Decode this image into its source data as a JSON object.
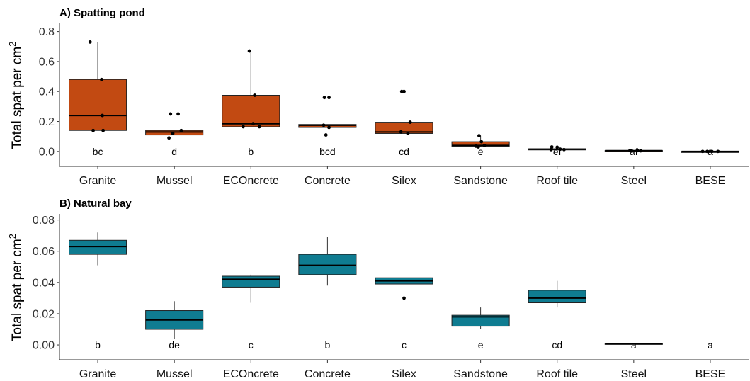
{
  "chart_data": [
    {
      "type": "box",
      "title": "A) Spatting pond",
      "ylabel": "Total spat per cm",
      "ylabel_sup": "2",
      "ylim": [
        -0.1,
        0.85
      ],
      "yticks": [
        0.0,
        0.2,
        0.4,
        0.6,
        0.8
      ],
      "ytick_labels": [
        "0.0",
        "0.2",
        "0.4",
        "0.6",
        "0.8"
      ],
      "fill_color": "#C24A12",
      "categories": [
        "Granite",
        "Mussel",
        "ECOncrete",
        "Concrete",
        "Silex",
        "Sandstone",
        "Roof tile",
        "Steel",
        "BESE"
      ],
      "boxes": [
        {
          "q1": 0.14,
          "median": 0.24,
          "q3": 0.48,
          "whisker_low": 0.14,
          "whisker_high": 0.73
        },
        {
          "q1": 0.11,
          "median": 0.13,
          "q3": 0.14,
          "whisker_low": 0.11,
          "whisker_high": 0.14
        },
        {
          "q1": 0.165,
          "median": 0.185,
          "q3": 0.375,
          "whisker_low": 0.165,
          "whisker_high": 0.67
        },
        {
          "q1": 0.16,
          "median": 0.175,
          "q3": 0.18,
          "whisker_low": 0.16,
          "whisker_high": 0.18
        },
        {
          "q1": 0.12,
          "median": 0.13,
          "q3": 0.195,
          "whisker_low": 0.12,
          "whisker_high": 0.195
        },
        {
          "q1": 0.035,
          "median": 0.04,
          "q3": 0.065,
          "whisker_low": 0.03,
          "whisker_high": 0.105
        },
        {
          "q1": 0.012,
          "median": 0.015,
          "q3": 0.017,
          "whisker_low": 0.01,
          "whisker_high": 0.02
        },
        {
          "q1": 0.004,
          "median": 0.005,
          "q3": 0.006,
          "whisker_low": 0.004,
          "whisker_high": 0.006
        },
        {
          "q1": 0.0,
          "median": 0.0,
          "q3": 0.0,
          "whisker_low": 0.0,
          "whisker_high": 0.0
        }
      ],
      "points": [
        [
          [
            0.73,
            -0.1
          ],
          [
            0.48,
            0.05
          ],
          [
            0.24,
            0.06
          ],
          [
            0.14,
            -0.06
          ],
          [
            0.14,
            0.07
          ]
        ],
        [
          [
            0.25,
            -0.05
          ],
          [
            0.25,
            0.05
          ],
          [
            0.14,
            0.09
          ],
          [
            0.12,
            -0.02
          ],
          [
            0.09,
            -0.07
          ]
        ],
        [
          [
            0.67,
            -0.02
          ],
          [
            0.375,
            0.05
          ],
          [
            0.185,
            0.03
          ],
          [
            0.165,
            -0.1
          ],
          [
            0.165,
            0.11
          ]
        ],
        [
          [
            0.36,
            -0.04
          ],
          [
            0.36,
            0.02
          ],
          [
            0.175,
            -0.05
          ],
          [
            0.16,
            0.02
          ],
          [
            0.11,
            -0.02
          ]
        ],
        [
          [
            0.4,
            -0.03
          ],
          [
            0.4,
            0.0
          ],
          [
            0.195,
            0.08
          ],
          [
            0.13,
            -0.04
          ],
          [
            0.12,
            0.05
          ]
        ],
        [
          [
            0.105,
            -0.02
          ],
          [
            0.065,
            0.01
          ],
          [
            0.04,
            0.05
          ],
          [
            0.035,
            -0.06
          ],
          [
            0.03,
            -0.03
          ]
        ],
        [
          [
            0.03,
            -0.07
          ],
          [
            0.028,
            0.0
          ],
          [
            0.015,
            0.04
          ],
          [
            0.012,
            -0.08
          ],
          [
            0.012,
            0.09
          ]
        ],
        [
          [
            0.006,
            -0.05
          ],
          [
            0.005,
            -0.03
          ],
          [
            0.005,
            0.05
          ],
          [
            0.004,
            0.09
          ]
        ],
        [
          [
            0.0,
            -0.1
          ],
          [
            0.0,
            -0.04
          ],
          [
            0.0,
            0.02
          ],
          [
            0.0,
            0.1
          ]
        ]
      ],
      "letters": [
        "bc",
        "d",
        "b",
        "bcd",
        "cd",
        "e",
        "ef",
        "af",
        "a"
      ],
      "letter_y": 0.0
    },
    {
      "type": "box",
      "title": "B) Natural bay",
      "ylabel": "Total spat per cm",
      "ylabel_sup": "2",
      "ylim": [
        -0.0095,
        0.083
      ],
      "yticks": [
        0.0,
        0.02,
        0.04,
        0.06,
        0.08
      ],
      "ytick_labels": [
        "0.00",
        "0.02",
        "0.04",
        "0.06",
        "0.08"
      ],
      "fill_color": "#0F7C91",
      "categories": [
        "Granite",
        "Mussel",
        "ECOncrete",
        "Concrete",
        "Silex",
        "Sandstone",
        "Roof tile",
        "Steel",
        "BESE"
      ],
      "boxes": [
        {
          "q1": 0.058,
          "median": 0.063,
          "q3": 0.067,
          "whisker_low": 0.051,
          "whisker_high": 0.072
        },
        {
          "q1": 0.01,
          "median": 0.016,
          "q3": 0.022,
          "whisker_low": 0.004,
          "whisker_high": 0.028
        },
        {
          "q1": 0.037,
          "median": 0.042,
          "q3": 0.044,
          "whisker_low": 0.027,
          "whisker_high": 0.045
        },
        {
          "q1": 0.045,
          "median": 0.051,
          "q3": 0.058,
          "whisker_low": 0.038,
          "whisker_high": 0.069
        },
        {
          "q1": 0.039,
          "median": 0.041,
          "q3": 0.043,
          "whisker_low": 0.039,
          "whisker_high": 0.043
        },
        {
          "q1": 0.012,
          "median": 0.018,
          "q3": 0.019,
          "whisker_low": 0.01,
          "whisker_high": 0.024
        },
        {
          "q1": 0.027,
          "median": 0.03,
          "q3": 0.035,
          "whisker_low": 0.024,
          "whisker_high": 0.041
        },
        {
          "q1": 0.0005,
          "median": 0.0007,
          "q3": 0.001,
          "whisker_low": 0.0005,
          "whisker_high": 0.001
        },
        null
      ],
      "points": [
        [],
        [],
        [],
        [],
        [
          [
            0.03,
            0.0
          ]
        ],
        [],
        [],
        [],
        []
      ],
      "letters": [
        "b",
        "de",
        "c",
        "b",
        "c",
        "e",
        "cd",
        "a",
        "a"
      ],
      "letter_y": 0.0
    }
  ]
}
